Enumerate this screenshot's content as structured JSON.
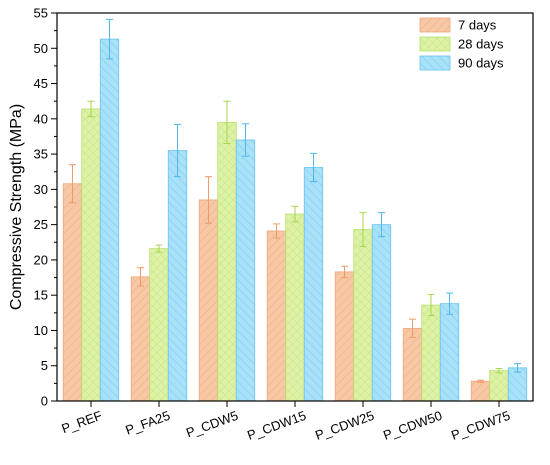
{
  "chart_data": {
    "type": "bar",
    "title": "",
    "xlabel": "",
    "ylabel": "Compressive Strength (MPa)",
    "ylim": [
      0,
      55
    ],
    "yticks": [
      0,
      5,
      10,
      15,
      20,
      25,
      30,
      35,
      40,
      45,
      50,
      55
    ],
    "categories": [
      "P_REF",
      "P_FA25",
      "P_CDW5",
      "P_CDW15",
      "P_CDW25",
      "P_CDW50",
      "P_CDW75"
    ],
    "legend_position": "top-right",
    "series": [
      {
        "name": "7 days",
        "color": "#f7c8a6",
        "edge_color": "#f0a57a",
        "error_color": "#ee9b6b",
        "values": [
          30.8,
          17.6,
          28.5,
          24.1,
          18.3,
          10.3,
          2.8
        ],
        "errors": [
          2.7,
          1.3,
          3.3,
          1.0,
          0.8,
          1.3,
          0.15
        ]
      },
      {
        "name": "28 days",
        "color": "#ddf2a8",
        "edge_color": "#b9df6a",
        "error_color": "#a7d64f",
        "values": [
          41.4,
          21.6,
          39.5,
          26.5,
          24.3,
          13.6,
          4.3
        ],
        "errors": [
          1.1,
          0.5,
          3.0,
          1.1,
          2.4,
          1.5,
          0.3
        ]
      },
      {
        "name": "90 days",
        "color": "#a9e1f8",
        "edge_color": "#66c3ee",
        "error_color": "#4fb7ea",
        "values": [
          51.3,
          35.5,
          37.0,
          33.1,
          25.0,
          13.8,
          4.7
        ],
        "errors": [
          2.8,
          3.7,
          2.3,
          2.0,
          1.7,
          1.5,
          0.6
        ]
      }
    ]
  }
}
